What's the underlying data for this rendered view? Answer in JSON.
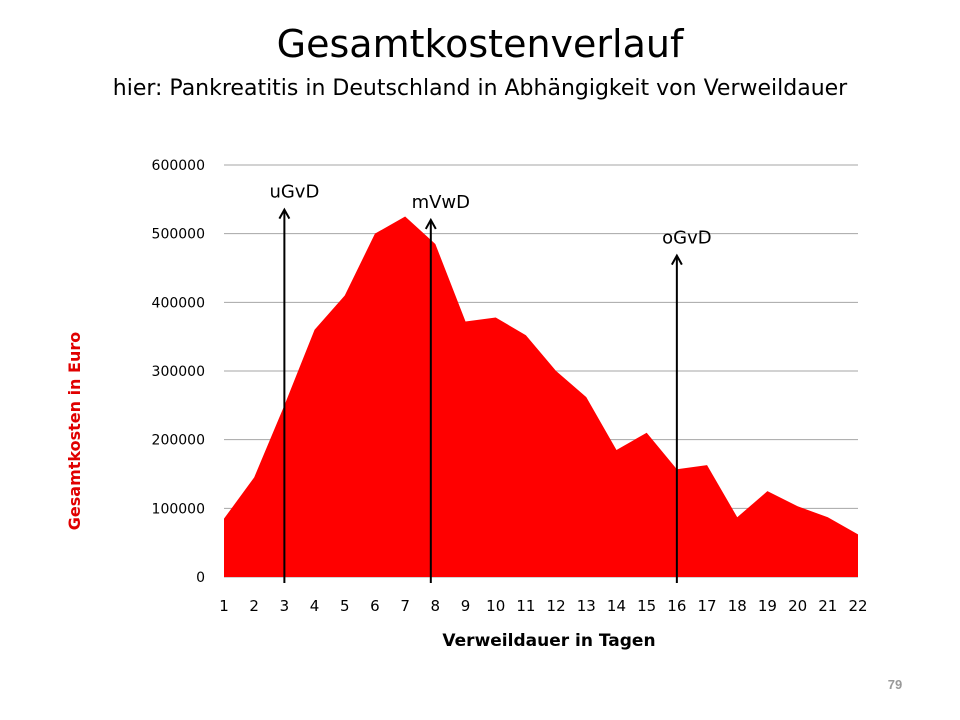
{
  "slide": {
    "title": "Gesamtkostenverlauf",
    "subtitle": "hier: Pankreatitis in Deutschland in Abhängigkeit von Verweildauer",
    "page_number": "79"
  },
  "colors": {
    "area_fill": "#ff0000",
    "ylabel_color": "#e00000",
    "grid": "#a6a6a6",
    "arrow": "#000000"
  },
  "chart_data": {
    "type": "area",
    "title": "",
    "xlabel": "Verweildauer in Tagen",
    "ylabel": "Gesamtkosten in Euro",
    "categories": [
      "1",
      "2",
      "3",
      "4",
      "5",
      "6",
      "7",
      "8",
      "9",
      "10",
      "11",
      "12",
      "13",
      "14",
      "15",
      "16",
      "17",
      "18",
      "19",
      "20",
      "21",
      "22"
    ],
    "yticks": [
      "0",
      "100000",
      "200000",
      "300000",
      "400000",
      "500000",
      "600000"
    ],
    "ylim": [
      0,
      600000
    ],
    "grid": true,
    "legend": "none",
    "series": [
      {
        "values": [
          85000,
          145000,
          250000,
          360000,
          410000,
          500000,
          525000,
          485000,
          372000,
          378000,
          352000,
          300000,
          262000,
          185000,
          210000,
          157000,
          163000,
          87000,
          125000,
          103000,
          87000,
          62000
        ]
      }
    ],
    "annotations": [
      {
        "label": "uGvD",
        "x": 3,
        "y_top": 535000
      },
      {
        "label": "mVwD",
        "x": 7.85,
        "y_top": 520000
      },
      {
        "label": "oGvD",
        "x": 16,
        "y_top": 468000
      }
    ]
  }
}
